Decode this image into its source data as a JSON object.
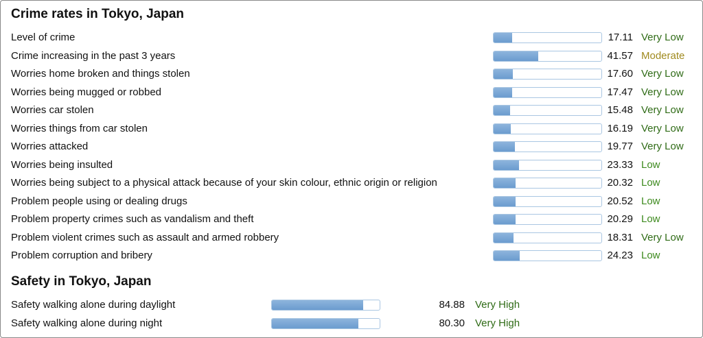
{
  "sections": [
    {
      "title": "Crime rates in Tokyo, Japan",
      "rows": [
        {
          "label": "Level of crime",
          "value": 17.11,
          "level": "Very Low",
          "color": "#2f6b16"
        },
        {
          "label": "Crime increasing in the past 3 years",
          "value": 41.57,
          "level": "Moderate",
          "color": "#a08a1e"
        },
        {
          "label": "Worries home broken and things stolen",
          "value": 17.6,
          "value_label": "17.60",
          "level": "Very Low",
          "color": "#2f6b16"
        },
        {
          "label": "Worries being mugged or robbed",
          "value": 17.47,
          "level": "Very Low",
          "color": "#2f6b16"
        },
        {
          "label": "Worries car stolen",
          "value": 15.48,
          "level": "Very Low",
          "color": "#2f6b16"
        },
        {
          "label": "Worries things from car stolen",
          "value": 16.19,
          "level": "Very Low",
          "color": "#2f6b16"
        },
        {
          "label": "Worries attacked",
          "value": 19.77,
          "level": "Very Low",
          "color": "#2f6b16"
        },
        {
          "label": "Worries being insulted",
          "value": 23.33,
          "level": "Low",
          "color": "#3d8a1e"
        },
        {
          "label": "Worries being subject to a physical attack because of your skin colour, ethnic origin or religion",
          "value": 20.32,
          "level": "Low",
          "color": "#3d8a1e"
        },
        {
          "label": "Problem people using or dealing drugs",
          "value": 20.52,
          "level": "Low",
          "color": "#3d8a1e"
        },
        {
          "label": "Problem property crimes such as vandalism and theft",
          "value": 20.29,
          "level": "Low",
          "color": "#3d8a1e"
        },
        {
          "label": "Problem violent crimes such as assault and armed robbery",
          "value": 18.31,
          "level": "Very Low",
          "color": "#2f6b16"
        },
        {
          "label": "Problem corruption and bribery",
          "value": 24.23,
          "level": "Low",
          "color": "#3d8a1e"
        }
      ]
    },
    {
      "title": "Safety in Tokyo, Japan",
      "rows": [
        {
          "label": "Safety walking alone during daylight",
          "value": 84.88,
          "level": "Very High",
          "color": "#2f6b16"
        },
        {
          "label": "Safety walking alone during night",
          "value": 80.3,
          "value_label": "80.30",
          "level": "Very High",
          "color": "#2f6b16"
        }
      ]
    }
  ]
}
